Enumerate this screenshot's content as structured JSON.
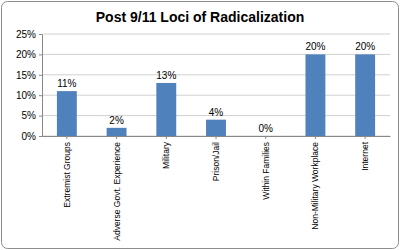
{
  "chart_data": {
    "type": "bar",
    "title": "Post 9/11 Loci of Radicalization",
    "categories": [
      "Extremist Groups",
      "Adverse Govt. Experience",
      "Military",
      "Prison/Jail",
      "Within Families",
      "Non-Military Workplace",
      "Internet"
    ],
    "values": [
      11,
      2,
      13,
      4,
      0,
      20,
      20
    ],
    "value_labels": [
      "11%",
      "2%",
      "13%",
      "4%",
      "0%",
      "20%",
      "20%"
    ],
    "color": "#4f81bd",
    "ylim": [
      0,
      25
    ],
    "yticks": [
      {
        "value": 0,
        "label": "0%"
      },
      {
        "value": 5,
        "label": "5%"
      },
      {
        "value": 10,
        "label": "10%"
      },
      {
        "value": 15,
        "label": "15%"
      },
      {
        "value": 20,
        "label": "20%"
      },
      {
        "value": 25,
        "label": "25%"
      }
    ],
    "grid": true,
    "data_labels": true
  }
}
